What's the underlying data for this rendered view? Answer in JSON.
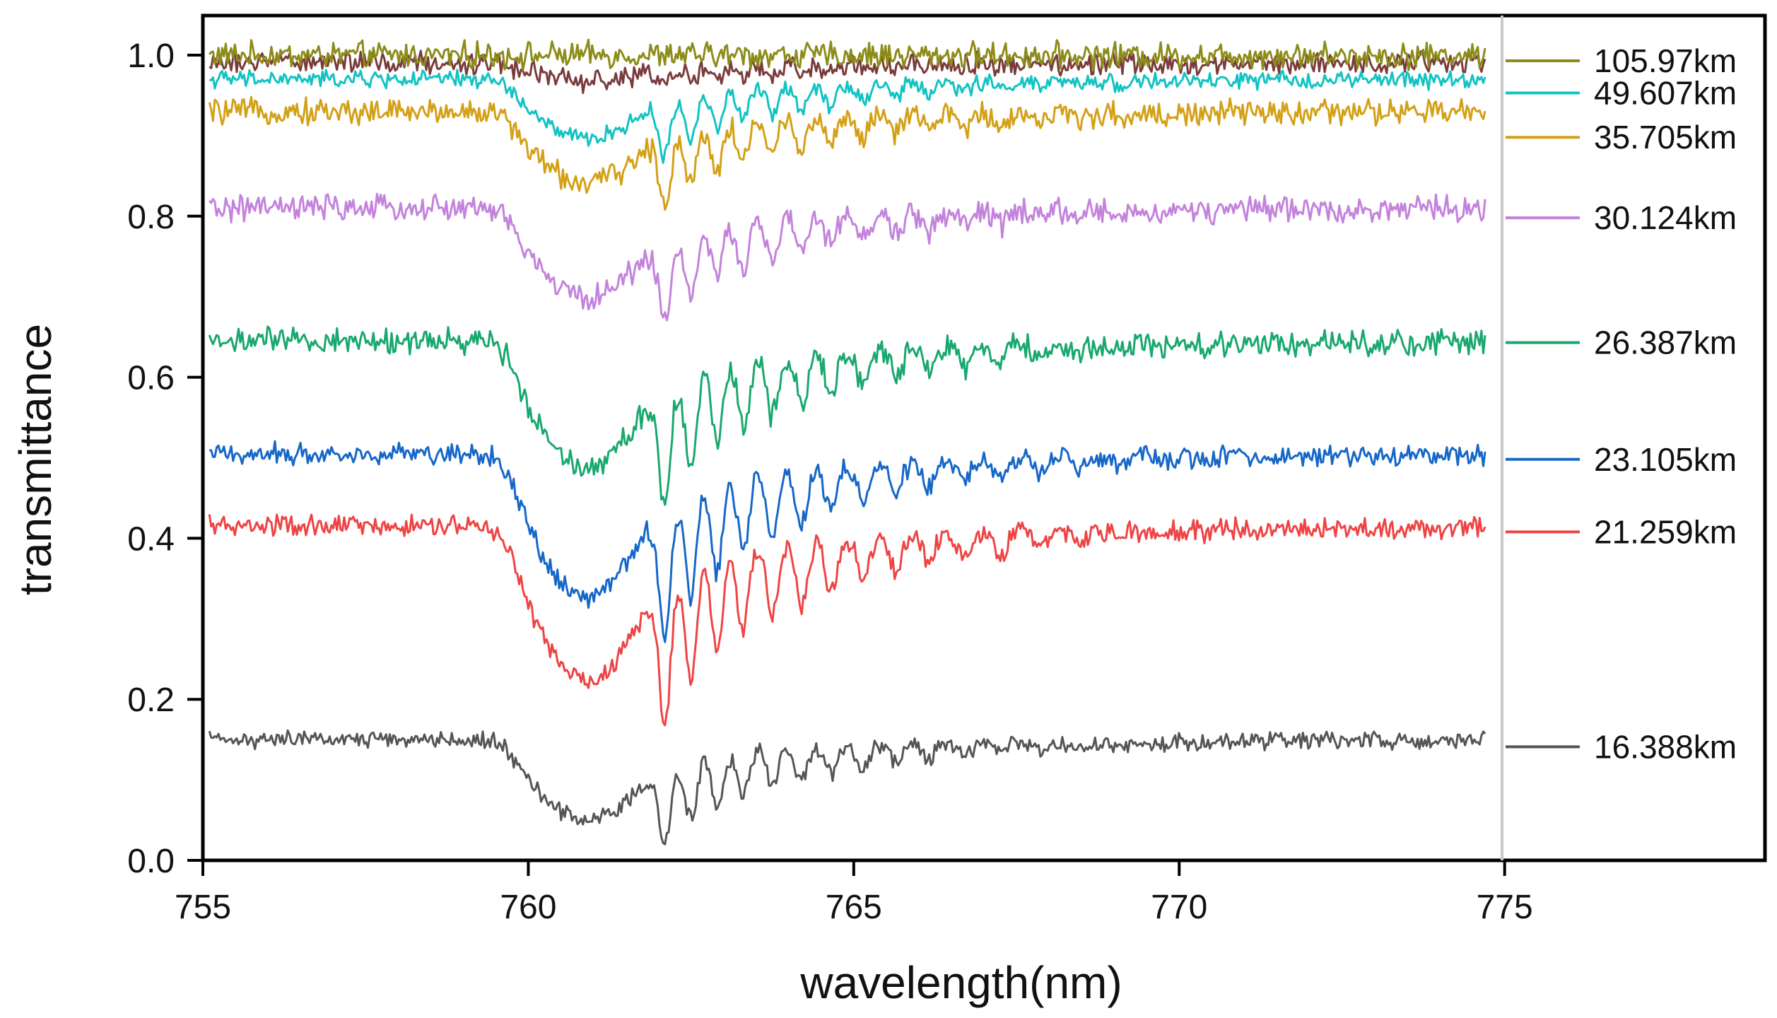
{
  "chart_data": {
    "type": "line",
    "title": "",
    "xlabel": "wavelength(nm)",
    "ylabel": "transmittance",
    "xlim": [
      755,
      779
    ],
    "ylim": [
      0.0,
      1.03
    ],
    "xticks": [
      755,
      760,
      765,
      770,
      775
    ],
    "xtick_labels": [
      "755",
      "760",
      "765",
      "770",
      "775"
    ],
    "yticks": [
      0.0,
      0.2,
      0.4,
      0.6,
      0.8,
      1.0
    ],
    "ytick_labels": [
      "0.0",
      "0.2",
      "0.4",
      "0.6",
      "0.8",
      "1.0"
    ],
    "grid": false,
    "legend_position": "right",
    "x_range_of_data": [
      755.1,
      774.7
    ],
    "series": [
      {
        "name": "105.97km",
        "color": "#8c8c1a",
        "baseline": 1.0,
        "depth": 0.0,
        "noise": 0.012
      },
      {
        "name": "49.607km",
        "color": "#12c3c3",
        "baseline": 0.97,
        "depth": 0.1,
        "noise": 0.008
      },
      {
        "name": "35.705km",
        "color": "#d4a017",
        "baseline": 0.93,
        "depth": 0.12,
        "noise": 0.012
      },
      {
        "name": "30.124km",
        "color": "#c383dc",
        "baseline": 0.81,
        "depth": 0.15,
        "noise": 0.012
      },
      {
        "name": "26.387km",
        "color": "#19a86e",
        "baseline": 0.645,
        "depth": 0.21,
        "noise": 0.012
      },
      {
        "name": "23.105km",
        "color": "#1667c8",
        "baseline": 0.505,
        "depth": 0.24,
        "noise": 0.01
      },
      {
        "name": "21.259km",
        "color": "#ef4444",
        "baseline": 0.415,
        "depth": 0.26,
        "noise": 0.01
      },
      {
        "name": "16.388km",
        "color": "#555555",
        "baseline": 0.15,
        "depth": 0.135,
        "noise": 0.008
      }
    ],
    "extra_series_unlabeled": {
      "color": "#7a3b3b",
      "baseline": 0.99,
      "depth": 0.03,
      "noise": 0.01
    }
  }
}
